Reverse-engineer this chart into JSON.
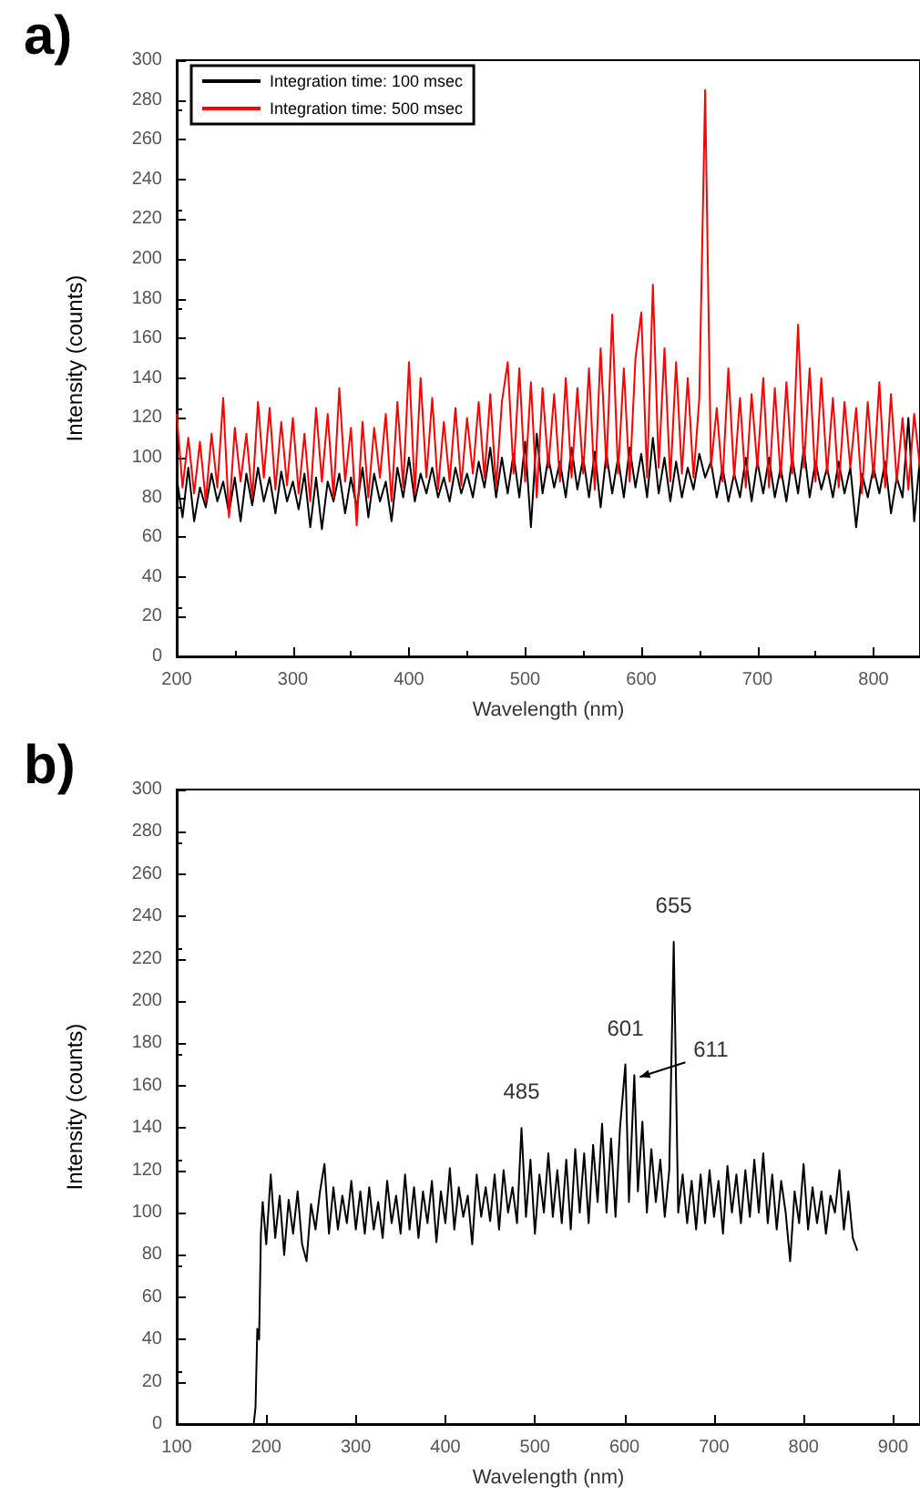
{
  "chart_data": [
    {
      "type": "line",
      "title": "a)",
      "xlabel": "Wavelength (nm)",
      "ylabel": "Intensity (counts)",
      "legend": "top left",
      "xlim": [
        200,
        840
      ],
      "xticks": [
        200,
        300,
        400,
        500,
        600,
        700,
        800
      ],
      "ylim": [
        0,
        300
      ],
      "yticks": [
        0,
        20,
        40,
        60,
        80,
        100,
        120,
        140,
        160,
        180,
        200,
        220,
        240,
        260,
        280,
        300
      ],
      "x": [
        200,
        205,
        210,
        215,
        220,
        225,
        230,
        235,
        240,
        245,
        250,
        255,
        260,
        265,
        270,
        275,
        280,
        285,
        290,
        295,
        300,
        305,
        310,
        315,
        320,
        325,
        330,
        335,
        340,
        345,
        350,
        355,
        360,
        365,
        370,
        375,
        380,
        385,
        390,
        395,
        400,
        405,
        410,
        415,
        420,
        425,
        430,
        435,
        440,
        445,
        450,
        455,
        460,
        465,
        470,
        475,
        480,
        485,
        490,
        495,
        500,
        505,
        510,
        515,
        520,
        525,
        530,
        535,
        540,
        545,
        550,
        555,
        560,
        565,
        570,
        575,
        580,
        585,
        590,
        595,
        600,
        605,
        610,
        615,
        620,
        625,
        630,
        635,
        640,
        645,
        650,
        655,
        660,
        665,
        670,
        675,
        680,
        685,
        690,
        695,
        700,
        705,
        710,
        715,
        720,
        725,
        730,
        735,
        740,
        745,
        750,
        755,
        760,
        765,
        770,
        775,
        780,
        785,
        790,
        795,
        800,
        805,
        810,
        815,
        820,
        825,
        830,
        835,
        840
      ],
      "series": [
        {
          "name": "Integration time: 100 msec",
          "color": "#000000",
          "values": [
            90,
            70,
            95,
            68,
            85,
            75,
            92,
            78,
            88,
            72,
            90,
            68,
            92,
            76,
            95,
            78,
            90,
            72,
            93,
            78,
            88,
            74,
            92,
            65,
            90,
            64,
            88,
            78,
            92,
            72,
            90,
            75,
            95,
            70,
            92,
            78,
            88,
            68,
            95,
            80,
            100,
            78,
            92,
            82,
            95,
            80,
            90,
            78,
            95,
            82,
            92,
            80,
            98,
            85,
            105,
            80,
            100,
            82,
            102,
            80,
            108,
            65,
            112,
            82,
            100,
            85,
            98,
            80,
            105,
            84,
            100,
            80,
            103,
            75,
            102,
            82,
            100,
            80,
            105,
            85,
            102,
            80,
            110,
            82,
            100,
            78,
            98,
            80,
            95,
            84,
            102,
            90,
            98,
            80,
            95,
            78,
            92,
            80,
            100,
            78,
            98,
            82,
            100,
            80,
            95,
            78,
            100,
            82,
            105,
            80,
            98,
            84,
            95,
            80,
            98,
            82,
            95,
            65,
            92,
            80,
            95,
            82,
            98,
            72,
            90,
            80,
            120,
            68,
            100
          ]
        },
        {
          "name": "Integration time: 500 msec",
          "color": "#ff0000",
          "values": [
            122,
            85,
            110,
            82,
            108,
            78,
            112,
            85,
            130,
            70,
            115,
            88,
            112,
            80,
            128,
            90,
            125,
            84,
            118,
            86,
            120,
            82,
            112,
            78,
            125,
            88,
            122,
            80,
            135,
            88,
            115,
            66,
            118,
            80,
            115,
            90,
            122,
            78,
            128,
            85,
            148,
            82,
            140,
            90,
            130,
            84,
            118,
            88,
            125,
            86,
            120,
            92,
            128,
            90,
            132,
            85,
            128,
            148,
            92,
            145,
            88,
            138,
            80,
            135,
            95,
            132,
            88,
            140,
            90,
            135,
            92,
            145,
            84,
            155,
            95,
            172,
            92,
            145,
            88,
            150,
            173,
            90,
            187,
            95,
            155,
            88,
            148,
            92,
            140,
            90,
            130,
            285,
            95,
            125,
            88,
            145,
            90,
            130,
            85,
            132,
            95,
            140,
            85,
            135,
            90,
            138,
            92,
            167,
            95,
            145,
            88,
            140,
            92,
            130,
            85,
            128,
            95,
            125,
            82,
            128,
            90,
            138,
            85,
            132,
            88,
            120,
            84,
            122,
            95
          ]
        }
      ]
    },
    {
      "type": "line",
      "title": "b)",
      "xlabel": "Wavelength (nm)",
      "ylabel": "Intensity (counts)",
      "xlim": [
        100,
        930
      ],
      "xticks": [
        100,
        200,
        300,
        400,
        500,
        600,
        700,
        800,
        900
      ],
      "ylim": [
        0,
        300
      ],
      "yticks": [
        0,
        20,
        40,
        60,
        80,
        100,
        120,
        140,
        160,
        180,
        200,
        220,
        240,
        260,
        280,
        300
      ],
      "annotations": [
        {
          "text": "485",
          "x": 485,
          "y": 140
        },
        {
          "text": "601",
          "x": 601,
          "y": 170
        },
        {
          "text": "611",
          "x": 611,
          "y": 165
        },
        {
          "text": "655",
          "x": 655,
          "y": 228
        }
      ],
      "x": [
        186,
        188,
        190,
        192,
        194,
        196,
        200,
        205,
        210,
        215,
        220,
        225,
        230,
        235,
        240,
        245,
        250,
        255,
        260,
        265,
        270,
        275,
        280,
        285,
        290,
        295,
        300,
        305,
        310,
        315,
        320,
        325,
        330,
        335,
        340,
        345,
        350,
        355,
        360,
        365,
        370,
        375,
        380,
        385,
        390,
        395,
        400,
        405,
        410,
        415,
        420,
        425,
        430,
        435,
        440,
        445,
        450,
        455,
        460,
        465,
        470,
        475,
        480,
        485,
        490,
        495,
        500,
        505,
        510,
        515,
        520,
        525,
        530,
        535,
        540,
        545,
        550,
        555,
        560,
        565,
        570,
        575,
        580,
        585,
        590,
        595,
        601,
        605,
        611,
        615,
        620,
        625,
        630,
        635,
        640,
        645,
        650,
        655,
        660,
        665,
        670,
        675,
        680,
        685,
        690,
        695,
        700,
        705,
        710,
        715,
        720,
        725,
        730,
        735,
        740,
        745,
        750,
        755,
        760,
        765,
        770,
        775,
        780,
        785,
        790,
        795,
        800,
        805,
        810,
        815,
        820,
        825,
        830,
        835,
        840,
        845,
        850,
        855,
        860
      ],
      "series": [
        {
          "color": "#000000",
          "values": [
            0,
            8,
            45,
            40,
            90,
            105,
            85,
            118,
            88,
            108,
            80,
            106,
            90,
            110,
            85,
            77,
            104,
            92,
            110,
            123,
            90,
            112,
            92,
            108,
            95,
            115,
            92,
            110,
            90,
            112,
            92,
            105,
            88,
            115,
            95,
            108,
            90,
            118,
            92,
            112,
            88,
            110,
            95,
            115,
            86,
            110,
            95,
            121,
            92,
            112,
            98,
            108,
            85,
            118,
            98,
            112,
            96,
            118,
            92,
            120,
            100,
            112,
            95,
            140,
            98,
            125,
            90,
            118,
            100,
            128,
            98,
            120,
            95,
            125,
            92,
            130,
            100,
            128,
            95,
            132,
            105,
            142,
            100,
            135,
            98,
            140,
            170,
            105,
            165,
            110,
            143,
            100,
            130,
            105,
            125,
            98,
            120,
            228,
            100,
            118,
            95,
            115,
            92,
            118,
            95,
            120,
            98,
            115,
            90,
            122,
            100,
            118,
            95,
            120,
            98,
            125,
            100,
            128,
            95,
            118,
            92,
            115,
            100,
            77,
            110,
            95,
            123,
            92,
            112,
            95,
            110,
            90,
            108,
            100,
            120,
            92,
            110,
            88,
            82
          ]
        }
      ]
    }
  ]
}
